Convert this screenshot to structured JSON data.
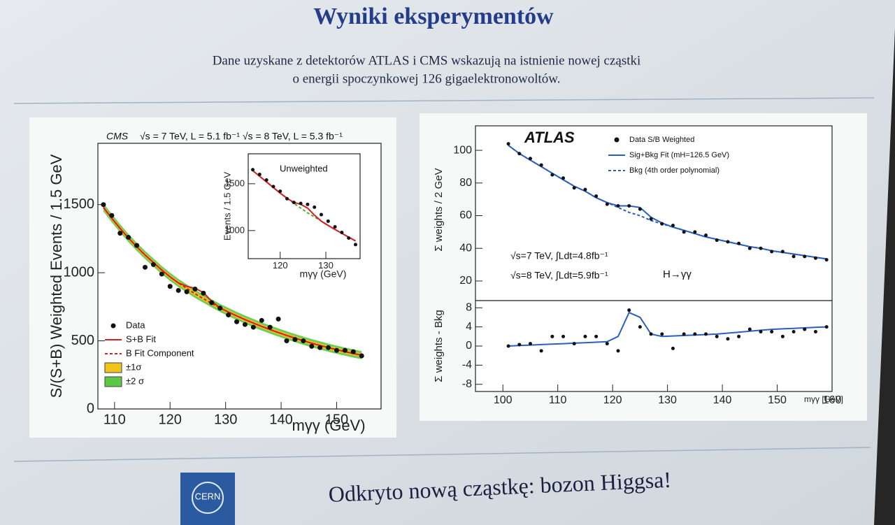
{
  "slide": {
    "title": "Wyniki eksperymentów",
    "subtitle": [
      "Dane uzyskane z detektorów ATLAS i CMS wskazują na istnienie nowej cząstki",
      "o energii spoczynkowej 126 gigaelektronowoltów."
    ],
    "footer": "Odkryto nową cząstkę: bozon Higgsa!",
    "logo": "CERN"
  },
  "chart_data": [
    {
      "type": "scatter",
      "legend": "lower left",
      "annotations": [
        "CMS",
        "√s = 7 TeV, L = 5.1 fb⁻¹  √s = 8 TeV, L = 5.3 fb⁻¹"
      ],
      "xlabel": "mγγ (GeV)",
      "ylabel": "S/(S+B) Weighted Events / 1.5 GeV",
      "xlim": [
        107,
        158
      ],
      "ylim": [
        0,
        1950
      ],
      "xticks": [
        110,
        120,
        130,
        140,
        150
      ],
      "yticks": [
        0,
        500,
        1000,
        1500
      ],
      "x": [
        108,
        109.5,
        111,
        112.5,
        114,
        115.5,
        117,
        118.5,
        120,
        121.5,
        123,
        124.5,
        126,
        127.5,
        129,
        130.5,
        132,
        133.5,
        135,
        136.5,
        138,
        139.5,
        141,
        142.5,
        144,
        145.5,
        147,
        148.5,
        150,
        151.5,
        153,
        154.5
      ],
      "series": [
        {
          "name": "Data",
          "style": "points",
          "color": "#111111",
          "values": [
            1500,
            1420,
            1290,
            1260,
            1200,
            1040,
            1060,
            990,
            900,
            870,
            860,
            880,
            850,
            780,
            740,
            690,
            640,
            620,
            600,
            650,
            600,
            660,
            500,
            510,
            500,
            460,
            450,
            450,
            430,
            430,
            420,
            390
          ]
        },
        {
          "name": "S+B Fit",
          "style": "line",
          "color": "#d42020",
          "values": [
            1480,
            1400,
            1325,
            1255,
            1190,
            1130,
            1075,
            1020,
            970,
            925,
            900,
            885,
            855,
            790,
            742,
            712,
            683,
            656,
            630,
            606,
            583,
            561,
            540,
            520,
            501,
            483,
            466,
            450,
            435,
            421,
            407,
            395
          ]
        },
        {
          "name": "B Fit Component",
          "style": "dashed",
          "color": "#d42020",
          "values": [
            1480,
            1400,
            1325,
            1255,
            1190,
            1130,
            1075,
            1020,
            970,
            925,
            885,
            845,
            810,
            775,
            742,
            712,
            683,
            656,
            630,
            606,
            583,
            561,
            540,
            520,
            501,
            483,
            466,
            450,
            435,
            421,
            407,
            395
          ]
        },
        {
          "name": "±1σ",
          "style": "band",
          "color": "#f0c419",
          "values": [
            15,
            15,
            15,
            15,
            15,
            15,
            15,
            15,
            15,
            15,
            15,
            15,
            15,
            15,
            15,
            15,
            15,
            15,
            15,
            15,
            15,
            15,
            15,
            15,
            15,
            15,
            15,
            15,
            15,
            15,
            15,
            15
          ]
        },
        {
          "name": "±2 σ",
          "style": "band",
          "color": "#5cc845",
          "values": [
            30,
            30,
            30,
            30,
            30,
            30,
            30,
            30,
            30,
            30,
            30,
            30,
            30,
            30,
            30,
            30,
            30,
            30,
            30,
            30,
            30,
            30,
            30,
            30,
            30,
            30,
            30,
            30,
            30,
            30,
            30,
            30
          ]
        }
      ]
    },
    {
      "type": "scatter",
      "annotations": [
        "Unweighted"
      ],
      "xlabel": "mγγ (GeV)",
      "ylabel": "Events / 1.5 GeV",
      "xlim": [
        113,
        137.5
      ],
      "ylim": [
        700,
        1820
      ],
      "xticks": [
        120,
        130
      ],
      "yticks": [
        1000,
        1500
      ],
      "x": [
        114,
        115.5,
        117,
        118.5,
        120,
        121.5,
        123,
        124.5,
        126,
        127.5,
        129,
        130.5,
        132,
        133.5,
        135,
        136.5
      ],
      "series": [
        {
          "name": "Data",
          "style": "points",
          "color": "#111111",
          "values": [
            1650,
            1600,
            1540,
            1470,
            1420,
            1340,
            1300,
            1290,
            1280,
            1250,
            1170,
            1100,
            1040,
            980,
            920,
            850
          ]
        },
        {
          "name": "S+B Fit",
          "style": "line",
          "color": "#d42020",
          "values": [
            1640,
            1580,
            1520,
            1460,
            1400,
            1345,
            1300,
            1280,
            1240,
            1165,
            1100,
            1055,
            1012,
            970,
            930,
            890
          ]
        },
        {
          "name": "B Fit Component",
          "style": "dashed",
          "color": "#4caf3a",
          "values": [
            1640,
            1580,
            1520,
            1460,
            1400,
            1345,
            1290,
            1240,
            1190,
            1145,
            1100,
            1055,
            1012,
            970,
            930,
            890
          ]
        }
      ]
    },
    {
      "type": "scatter",
      "legend": "upper right",
      "annotations": [
        "ATLAS",
        "√s=7 TeV, ∫Ldt=4.8fb⁻¹",
        "√s=8 TeV, ∫Ldt=5.9fb⁻¹",
        "H→γγ"
      ],
      "ylabel": "Σ weights / 2 GeV",
      "xlim": [
        95,
        160
      ],
      "ylim": [
        8,
        115
      ],
      "yticks": [
        20,
        40,
        60,
        80,
        100
      ],
      "x": [
        101,
        103,
        105,
        107,
        109,
        111,
        113,
        115,
        117,
        119,
        121,
        123,
        125,
        127,
        129,
        131,
        133,
        135,
        137,
        139,
        141,
        143,
        145,
        147,
        149,
        151,
        153,
        155,
        157,
        159
      ],
      "series": [
        {
          "name": "Data S/B Weighted",
          "style": "points",
          "color": "#111111",
          "values": [
            104,
            98,
            95,
            91,
            85,
            83,
            77,
            76,
            72,
            67,
            66,
            66,
            64,
            58,
            55,
            54,
            50,
            50,
            48,
            45,
            44,
            43,
            40,
            40,
            38,
            38,
            35,
            35,
            34,
            33
          ]
        },
        {
          "name": "Sig+Bkg Fit (mH=126.5 GeV)",
          "style": "line",
          "color": "#2a5fc0",
          "values": [
            103,
            98,
            94,
            90,
            86,
            82,
            78,
            75,
            71,
            68,
            66,
            66,
            65,
            59,
            55.5,
            53,
            51,
            49,
            47,
            45.5,
            44,
            42.5,
            41,
            40,
            38.5,
            37.5,
            36.5,
            35.5,
            34.5,
            33.5
          ]
        },
        {
          "name": "Bkg (4th order polynomial)",
          "style": "dashed",
          "color": "#2a5fc0",
          "values": [
            103,
            98,
            94,
            90,
            86,
            82,
            78,
            75,
            71,
            68,
            65,
            62,
            60,
            57,
            55,
            53,
            51,
            49,
            47,
            45.5,
            44,
            42.5,
            41,
            40,
            38.5,
            37.5,
            36.5,
            35.5,
            34.5,
            33.5
          ]
        }
      ]
    },
    {
      "type": "scatter",
      "xlabel": "mγγ [GeV]",
      "ylabel": "Σ weights - Bkg",
      "xlim": [
        95,
        160
      ],
      "ylim": [
        -9.5,
        9.5
      ],
      "xticks": [
        100,
        110,
        120,
        130,
        140,
        150,
        160
      ],
      "yticks": [
        -8,
        -4,
        0,
        4,
        8
      ],
      "x": [
        101,
        103,
        105,
        107,
        109,
        111,
        113,
        115,
        117,
        119,
        121,
        123,
        125,
        127,
        129,
        131,
        133,
        135,
        137,
        139,
        141,
        143,
        145,
        147,
        149,
        151,
        153,
        155,
        157,
        159
      ],
      "series": [
        {
          "style": "points",
          "color": "#111111",
          "values": [
            0,
            0.3,
            0.5,
            -1,
            2,
            2,
            0.5,
            2,
            2,
            0.5,
            -1,
            7.5,
            4,
            2.5,
            2.5,
            -0.5,
            2.5,
            2.5,
            2.5,
            2,
            1.5,
            2,
            3.5,
            3,
            3,
            2,
            3,
            3.5,
            3,
            4
          ]
        },
        {
          "style": "line",
          "color": "#2a5fc0",
          "values": [
            0,
            0.1,
            0.2,
            0.3,
            0.4,
            0.5,
            0.6,
            0.7,
            0.8,
            0.9,
            2,
            7,
            6,
            2.5,
            2,
            2.1,
            2.2,
            2.3,
            2.4,
            2.5,
            2.7,
            2.9,
            3.1,
            3.3,
            3.5,
            3.6,
            3.7,
            3.8,
            3.9,
            4
          ]
        }
      ]
    }
  ]
}
